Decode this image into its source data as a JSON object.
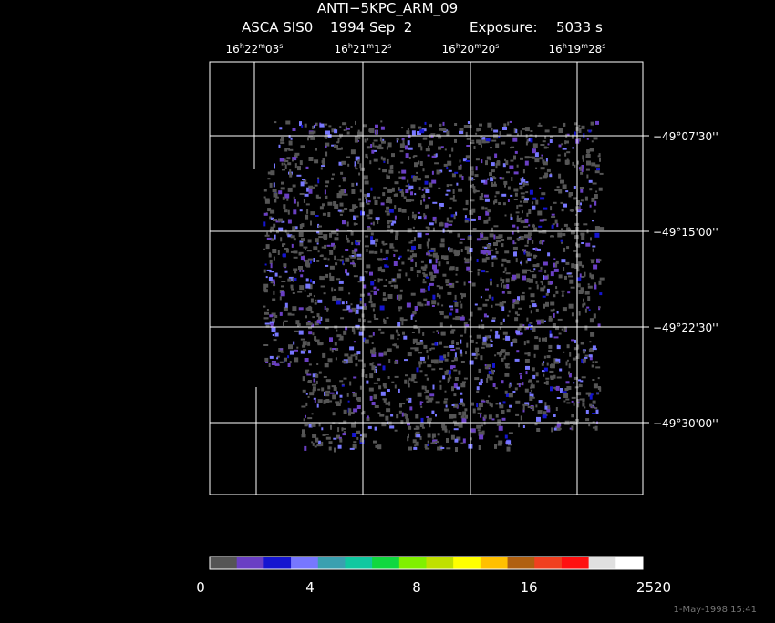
{
  "header": {
    "title": "ANTI−5KPC_ARM_09",
    "instrument": "ASCA SIS0",
    "date": "1994 Sep  2",
    "exposure_label": "Exposure:",
    "exposure": "5033 s"
  },
  "ra_labels": [
    [
      "16",
      "h",
      "22",
      "m",
      "03",
      "s"
    ],
    [
      "16",
      "h",
      "21",
      "m",
      "12",
      "s"
    ],
    [
      "16",
      "h",
      "20",
      "m",
      "20",
      "s"
    ],
    [
      "16",
      "h",
      "19",
      "m",
      "28",
      "s"
    ]
  ],
  "dec_labels": [
    "−49°07'30''",
    "−49°15'00''",
    "−49°22'30''",
    "−49°30'00''"
  ],
  "colorbar": {
    "labels": [
      "0",
      "4",
      "8",
      "16",
      "2520"
    ],
    "colors": [
      "#555555",
      "#6a3fc4",
      "#1515d0",
      "#7777ff",
      "#3aa0b0",
      "#10c8a0",
      "#10d840",
      "#80f000",
      "#c0e000",
      "#ffff00",
      "#ffc000",
      "#b06010",
      "#f04020",
      "#ff1010",
      "#e0e0e0",
      "#ffffff"
    ]
  },
  "footer": "1-May-1998 15:41"
}
